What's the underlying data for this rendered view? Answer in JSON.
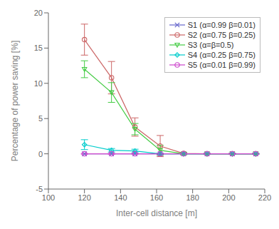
{
  "chart_data": {
    "type": "line",
    "x": [
      120,
      135,
      148,
      162,
      175,
      188,
      202,
      215
    ],
    "series": [
      {
        "name": "S1 (α=0.99 β=0.01)",
        "color": "#6666cc",
        "marker": "x",
        "values": [
          0.0,
          0.0,
          0.0,
          0.0,
          0.0,
          0.0,
          0.0,
          0.0
        ],
        "yerr": [
          0.0,
          0.0,
          0.0,
          0.0,
          0.0,
          0.0,
          0.0,
          0.0
        ]
      },
      {
        "name": "S2 (α=0.75 β=0.25)",
        "color": "#cc6666",
        "marker": "circle",
        "values": [
          16.2,
          10.8,
          3.8,
          1.1,
          0.05,
          0.0,
          0.0,
          0.0
        ],
        "yerr": [
          2.2,
          2.3,
          1.3,
          1.5,
          0.15,
          0.05,
          0.05,
          0.05
        ]
      },
      {
        "name": "S3 (α=β=0.5)",
        "color": "#44cc44",
        "marker": "triangle_down",
        "values": [
          12.0,
          8.7,
          3.5,
          0.5,
          0.0,
          0.0,
          0.0,
          0.0
        ],
        "yerr": [
          1.2,
          1.4,
          0.8,
          0.7,
          0.15,
          0.05,
          0.05,
          0.05
        ]
      },
      {
        "name": "S4 (α=0.25 β=0.75)",
        "color": "#00cccc",
        "marker": "diamond",
        "values": [
          1.3,
          0.5,
          0.4,
          0.0,
          0.0,
          0.0,
          0.0,
          0.0
        ],
        "yerr": [
          0.7,
          0.25,
          0.25,
          0.1,
          0.05,
          0.05,
          0.05,
          0.05
        ]
      },
      {
        "name": "S5 (α=0.01 β=0.99)",
        "color": "#cc44cc",
        "marker": "circle",
        "values": [
          0.0,
          0.0,
          0.0,
          0.0,
          0.0,
          0.0,
          0.0,
          0.0
        ],
        "yerr": [
          0.05,
          0.05,
          0.05,
          0.05,
          0.05,
          0.05,
          0.05,
          0.05
        ]
      }
    ],
    "xlabel": "Inter-cell distance [m]",
    "ylabel": "Percentage of power saving [%]",
    "xlim": [
      100,
      220
    ],
    "ylim": [
      -5,
      20
    ],
    "xticks": [
      100,
      120,
      140,
      160,
      180,
      200,
      220
    ],
    "yticks": [
      -5,
      0,
      5,
      10,
      15,
      20
    ],
    "grid": false,
    "legend": "upper right"
  }
}
